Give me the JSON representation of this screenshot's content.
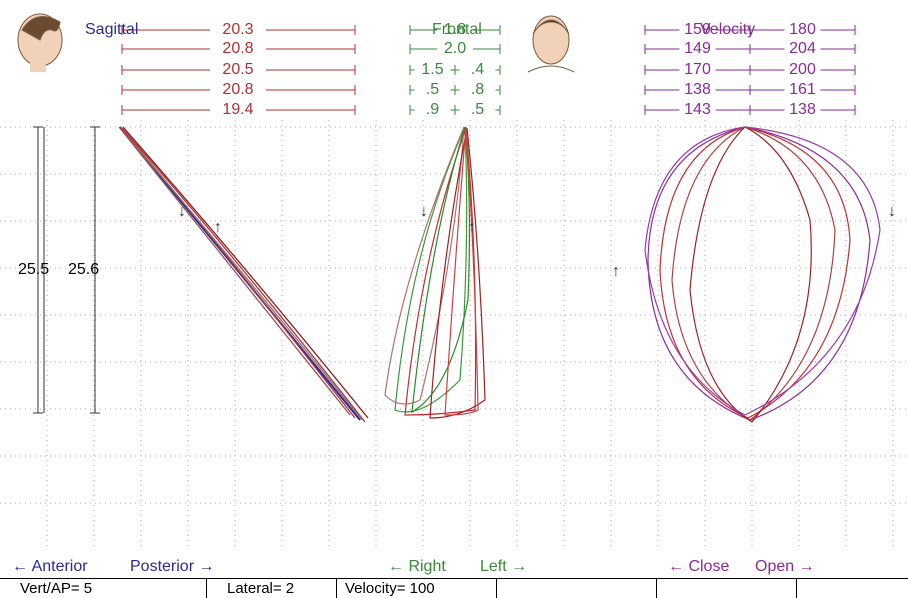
{
  "sagittal": {
    "title": "Sagittal",
    "rows": [
      "20.3",
      "20.8",
      "20.5",
      "20.8",
      "19.4"
    ]
  },
  "frontal": {
    "title": "Frontal",
    "rows": [
      [
        "1.8"
      ],
      [
        "2.0"
      ],
      [
        "1.5",
        ".4"
      ],
      [
        ".5",
        ".8"
      ],
      [
        ".9",
        ".5"
      ]
    ]
  },
  "velocity": {
    "title": "Velocity",
    "rows": [
      [
        "159",
        "180"
      ],
      [
        "149",
        "204"
      ],
      [
        "170",
        "200"
      ],
      [
        "138",
        "161"
      ],
      [
        "143",
        "138"
      ]
    ]
  },
  "vertical": [
    "25.5",
    "25.6"
  ],
  "directions": [
    "← Anterior",
    "Posterior →",
    "← Right",
    "Left →",
    "← Close",
    "Open →"
  ],
  "status": [
    "Vert/AP= 5",
    "Lateral= 2",
    "Velocity= 100"
  ]
}
